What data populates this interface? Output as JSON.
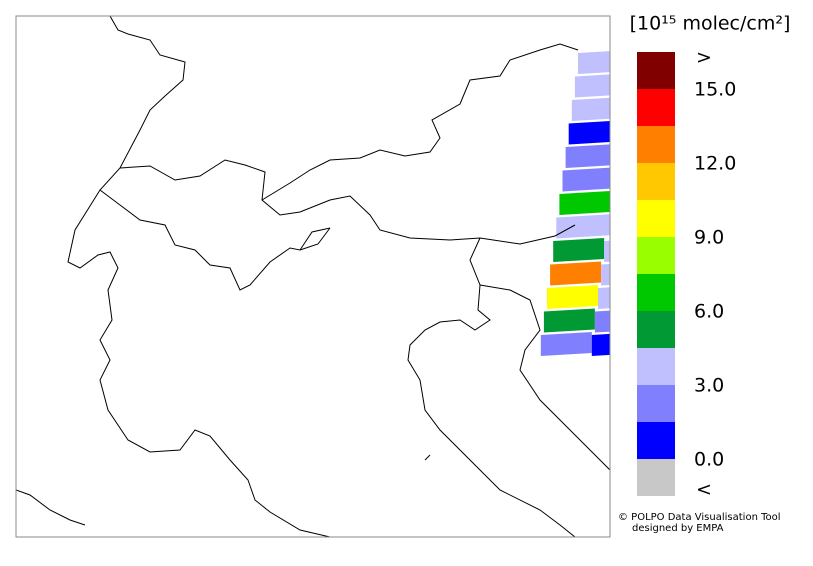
{
  "map": {
    "colorbar": {
      "title": "[10¹⁵ molec/cm²]",
      "lim": [
        0,
        15
      ],
      "below_color": "#c8c8c8",
      "colors": [
        "#0000ff",
        "#8080ff",
        "#c0c0ff",
        "#009933",
        "#00c800",
        "#99ff00",
        "#ffff00",
        "#ffc800",
        "#ff8000",
        "#ff0000"
      ],
      "above_color": "#800000",
      "ticks": [
        {
          "value": 0,
          "label": "0.0"
        },
        {
          "value": 3,
          "label": "3.0"
        },
        {
          "value": 6,
          "label": "6.0"
        },
        {
          "value": 9,
          "label": "9.0"
        },
        {
          "value": 12,
          "label": "12.0"
        },
        {
          "value": 15,
          "label": "15.0"
        }
      ],
      "below_label": "<",
      "above_label": ">"
    },
    "swath_cells": [
      [
        "#c0c0ff"
      ],
      [
        "#c0c0ff"
      ],
      [
        "#c0c0ff"
      ],
      [
        "#0000ff"
      ],
      [
        "#8080ff"
      ],
      [
        "#8080ff"
      ],
      [
        "#00c800"
      ],
      [
        "#c0c0ff"
      ],
      [
        "#009933",
        "#c0c0ff"
      ],
      [
        "#ff8000",
        "#c0c0ff"
      ],
      [
        "#ffff00",
        "#c0c0ff"
      ],
      [
        "#009933",
        "#8080ff"
      ],
      [
        "#8080ff",
        "#0000ff"
      ]
    ],
    "credit": [
      "© POLPO Data Visualisation Tool",
      "designed by EMPA"
    ]
  }
}
